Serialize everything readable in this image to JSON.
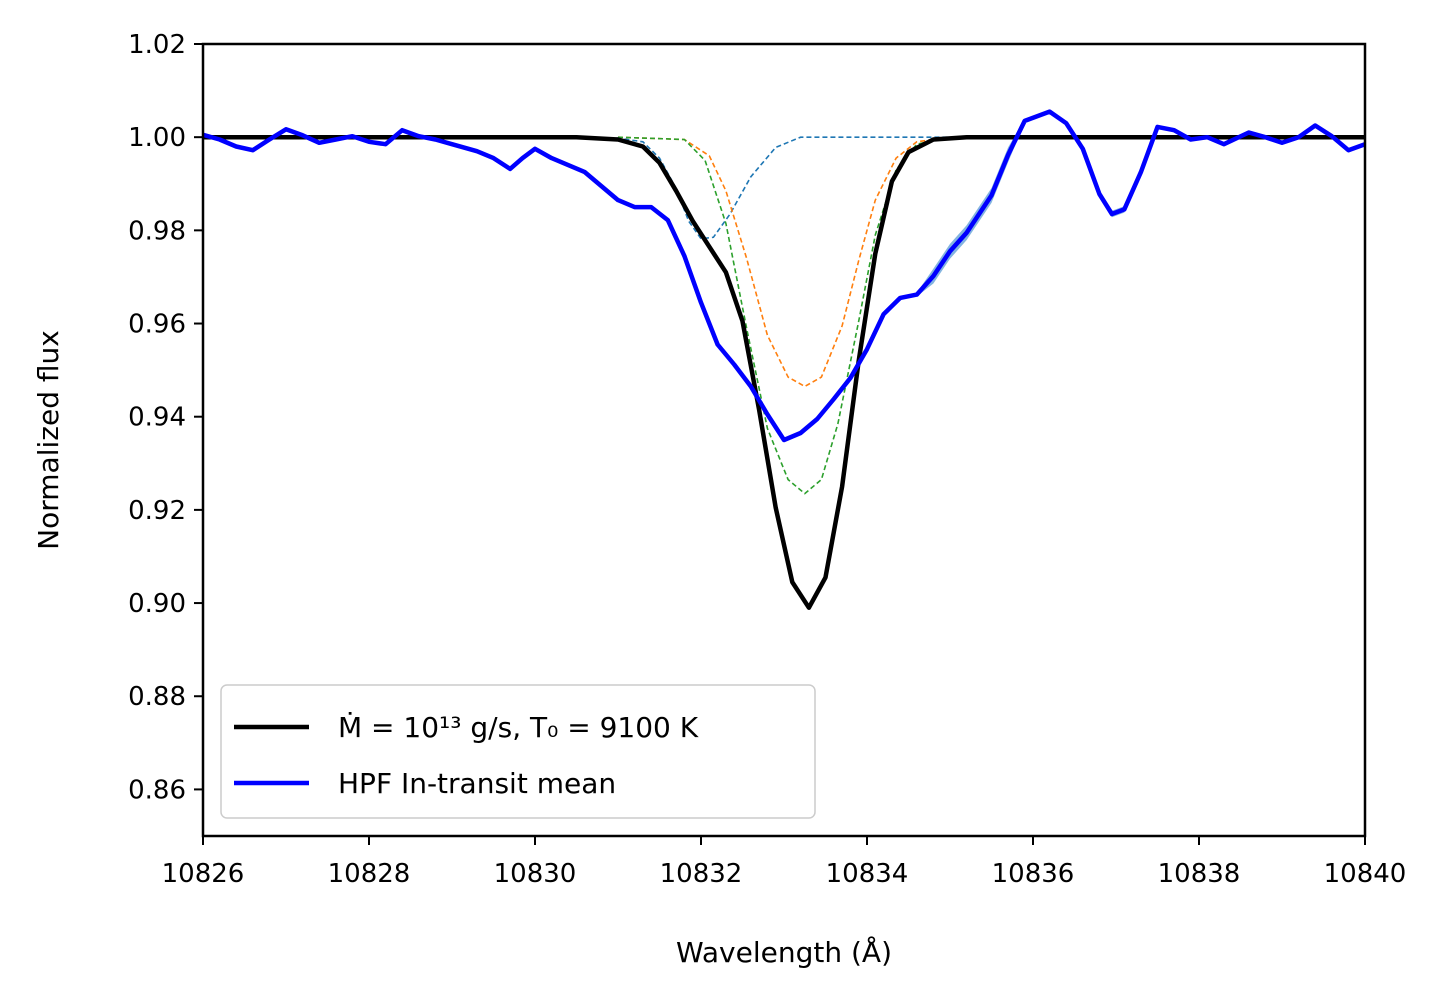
{
  "chart_data": {
    "type": "line",
    "xlabel": "Wavelength (Å)",
    "ylabel": "Normalized flux",
    "xlim": [
      10826,
      10840
    ],
    "ylim": [
      0.85,
      1.02
    ],
    "x_ticks": [
      "10826",
      "10828",
      "10830",
      "10832",
      "10834",
      "10836",
      "10838",
      "10840"
    ],
    "y_ticks": [
      "0.86",
      "0.88",
      "0.90",
      "0.92",
      "0.94",
      "0.96",
      "0.98",
      "1.00",
      "1.02"
    ],
    "grid": false,
    "legend_position": "lower-left",
    "legend": [
      {
        "label": "Ṁ = 10¹³ g/s, T₀ = 9100 K",
        "color": "#000000"
      },
      {
        "label": "HPF In-transit mean",
        "color": "#0000ff"
      }
    ],
    "series": [
      {
        "name": "Ṁ = 10¹³ g/s, T₀ = 9100 K",
        "color": "#000000",
        "style": "solid",
        "points": [
          [
            10826.0,
            1.0
          ],
          [
            10830.5,
            1.0
          ],
          [
            10831.0,
            0.9995
          ],
          [
            10831.3,
            0.998
          ],
          [
            10831.5,
            0.9945
          ],
          [
            10831.7,
            0.9885
          ],
          [
            10831.9,
            0.982
          ],
          [
            10832.1,
            0.9765
          ],
          [
            10832.3,
            0.971
          ],
          [
            10832.5,
            0.9605
          ],
          [
            10832.7,
            0.9415
          ],
          [
            10832.9,
            0.9205
          ],
          [
            10833.1,
            0.9045
          ],
          [
            10833.3,
            0.899
          ],
          [
            10833.5,
            0.9055
          ],
          [
            10833.7,
            0.925
          ],
          [
            10833.9,
            0.952
          ],
          [
            10834.1,
            0.975
          ],
          [
            10834.3,
            0.9905
          ],
          [
            10834.5,
            0.9968
          ],
          [
            10834.8,
            0.9995
          ],
          [
            10835.2,
            1.0
          ],
          [
            10840.0,
            1.0
          ]
        ]
      },
      {
        "name": "HPF In-transit mean",
        "color": "#0000ff",
        "style": "solid",
        "band_color": "#5b9bd5",
        "points": [
          [
            10826.0,
            1.0005
          ],
          [
            10826.2,
            0.9995
          ],
          [
            10826.4,
            0.998
          ],
          [
            10826.6,
            0.9972
          ],
          [
            10826.8,
            0.9995
          ],
          [
            10827.0,
            1.0017
          ],
          [
            10827.2,
            1.0004
          ],
          [
            10827.4,
            0.9988
          ],
          [
            10827.6,
            0.9995
          ],
          [
            10827.8,
            1.0002
          ],
          [
            10828.0,
            0.999
          ],
          [
            10828.2,
            0.9985
          ],
          [
            10828.4,
            1.0015
          ],
          [
            10828.6,
            1.0002
          ],
          [
            10828.8,
            0.9995
          ],
          [
            10829.0,
            0.9985
          ],
          [
            10829.3,
            0.997
          ],
          [
            10829.5,
            0.9955
          ],
          [
            10829.7,
            0.9932
          ],
          [
            10829.85,
            0.9955
          ],
          [
            10830.0,
            0.9975
          ],
          [
            10830.2,
            0.9955
          ],
          [
            10830.4,
            0.994
          ],
          [
            10830.6,
            0.9925
          ],
          [
            10830.8,
            0.9895
          ],
          [
            10831.0,
            0.9865
          ],
          [
            10831.2,
            0.985
          ],
          [
            10831.4,
            0.985
          ],
          [
            10831.6,
            0.9822
          ],
          [
            10831.8,
            0.9745
          ],
          [
            10832.0,
            0.9645
          ],
          [
            10832.2,
            0.9555
          ],
          [
            10832.4,
            0.9512
          ],
          [
            10832.6,
            0.9465
          ],
          [
            10832.8,
            0.9405
          ],
          [
            10833.0,
            0.935
          ],
          [
            10833.2,
            0.9365
          ],
          [
            10833.4,
            0.9395
          ],
          [
            10833.6,
            0.9438
          ],
          [
            10833.8,
            0.9483
          ],
          [
            10834.0,
            0.9545
          ],
          [
            10834.2,
            0.962
          ],
          [
            10834.4,
            0.9655
          ],
          [
            10834.6,
            0.9662
          ],
          [
            10834.8,
            0.9702
          ],
          [
            10835.0,
            0.9755
          ],
          [
            10835.2,
            0.9795
          ],
          [
            10835.5,
            0.9875
          ],
          [
            10835.7,
            0.9962
          ],
          [
            10835.9,
            1.0035
          ],
          [
            10836.2,
            1.0055
          ],
          [
            10836.4,
            1.003
          ],
          [
            10836.6,
            0.9975
          ],
          [
            10836.8,
            0.9878
          ],
          [
            10836.95,
            0.9835
          ],
          [
            10837.1,
            0.9845
          ],
          [
            10837.3,
            0.9925
          ],
          [
            10837.5,
            1.0022
          ],
          [
            10837.7,
            1.0015
          ],
          [
            10837.9,
            0.9995
          ],
          [
            10838.1,
            1.0
          ],
          [
            10838.3,
            0.9985
          ],
          [
            10838.6,
            1.001
          ],
          [
            10838.8,
            1.0
          ],
          [
            10839.0,
            0.9988
          ],
          [
            10839.2,
            1.0
          ],
          [
            10839.4,
            1.0025
          ],
          [
            10839.6,
            1.0002
          ],
          [
            10839.8,
            0.9972
          ],
          [
            10840.0,
            0.9985
          ]
        ]
      },
      {
        "color": "#1f77b4",
        "style": "dashed",
        "points": [
          [
            10830.5,
            1.0
          ],
          [
            10831.0,
            0.9998
          ],
          [
            10831.3,
            0.999
          ],
          [
            10831.5,
            0.9955
          ],
          [
            10831.7,
            0.989
          ],
          [
            10831.85,
            0.982
          ],
          [
            10832.0,
            0.9782
          ],
          [
            10832.15,
            0.9785
          ],
          [
            10832.35,
            0.9835
          ],
          [
            10832.6,
            0.9915
          ],
          [
            10832.9,
            0.9978
          ],
          [
            10833.2,
            1.0
          ],
          [
            10835.0,
            1.0
          ]
        ]
      },
      {
        "color": "#ff7f0e",
        "style": "dashed",
        "points": [
          [
            10831.0,
            1.0
          ],
          [
            10831.8,
            0.9995
          ],
          [
            10832.1,
            0.996
          ],
          [
            10832.3,
            0.9885
          ],
          [
            10832.55,
            0.974
          ],
          [
            10832.8,
            0.9575
          ],
          [
            10833.05,
            0.9485
          ],
          [
            10833.25,
            0.9465
          ],
          [
            10833.45,
            0.9485
          ],
          [
            10833.7,
            0.9595
          ],
          [
            10833.9,
            0.9735
          ],
          [
            10834.1,
            0.9865
          ],
          [
            10834.35,
            0.9955
          ],
          [
            10834.6,
            0.999
          ],
          [
            10835.0,
            1.0
          ]
        ]
      },
      {
        "color": "#2ca02c",
        "style": "dashed",
        "points": [
          [
            10831.0,
            1.0
          ],
          [
            10831.8,
            0.9995
          ],
          [
            10832.05,
            0.995
          ],
          [
            10832.3,
            0.9815
          ],
          [
            10832.55,
            0.959
          ],
          [
            10832.8,
            0.9375
          ],
          [
            10833.05,
            0.9265
          ],
          [
            10833.25,
            0.9235
          ],
          [
            10833.45,
            0.9265
          ],
          [
            10833.65,
            0.9385
          ],
          [
            10833.9,
            0.9605
          ],
          [
            10834.1,
            0.979
          ],
          [
            10834.35,
            0.993
          ],
          [
            10834.6,
            0.9985
          ],
          [
            10835.0,
            1.0
          ]
        ]
      }
    ]
  }
}
